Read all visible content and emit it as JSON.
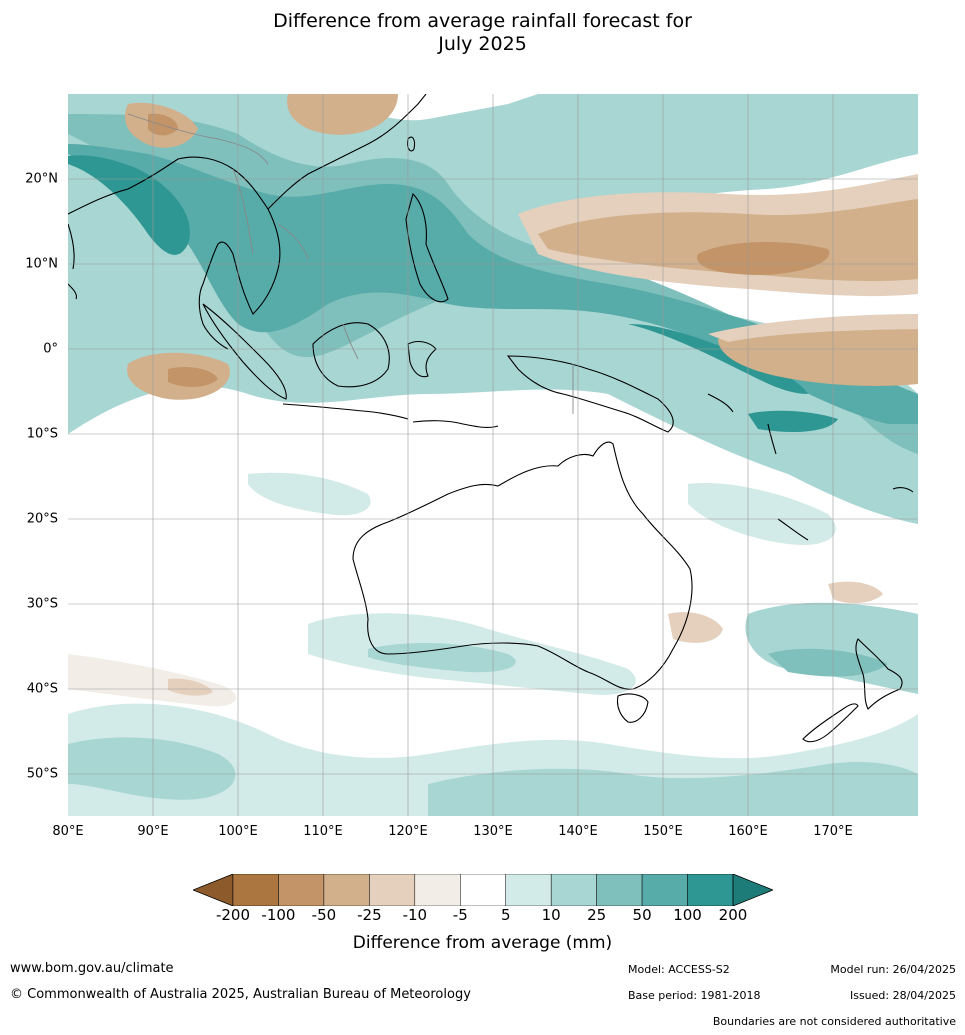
{
  "title": "Difference from average rainfall forecast for July 2025",
  "title_line1": "Difference from average rainfall forecast for",
  "title_line2": "July 2025",
  "map": {
    "region": "Australia, Indian Ocean and Western Pacific",
    "lon_range": [
      80,
      180
    ],
    "lat_range": [
      -55,
      30
    ],
    "lat_labels": [
      "20°N",
      "10°N",
      "0°",
      "10°S",
      "20°S",
      "30°S",
      "40°S",
      "50°S"
    ],
    "lon_labels": [
      "80°E",
      "90°E",
      "100°E",
      "110°E",
      "120°E",
      "130°E",
      "140°E",
      "150°E",
      "160°E",
      "170°E"
    ],
    "colors": {
      "land_outline": "#000000",
      "border": "#888888",
      "gridline": "#9a9a9a"
    }
  },
  "colorbar": {
    "title": "Difference from average (mm)",
    "ticks": [
      "-200",
      "-100",
      "-50",
      "-25",
      "-10",
      "-5",
      "5",
      "10",
      "25",
      "50",
      "100",
      "200"
    ],
    "colors": [
      "#8c5a2b",
      "#ab7640",
      "#c39467",
      "#d2b08c",
      "#e4d0bd",
      "#f2ede6",
      "#ffffff",
      "#d3ebe8",
      "#a8d6d3",
      "#7fc0bd",
      "#57aba8",
      "#2f9793",
      "#1d7c78"
    ],
    "extend": "both"
  },
  "footer": {
    "website": "www.bom.gov.au/climate",
    "copyright": "© Commonwealth of Australia 2025, Australian Bureau of Meteorology",
    "model": "Model: ACCESS-S2",
    "base_period": "Base period: 1981-2018",
    "model_run": "Model run: 26/04/2025",
    "issued": "Issued: 28/04/2025",
    "disclaimer": "Boundaries are not considered authoritative"
  }
}
